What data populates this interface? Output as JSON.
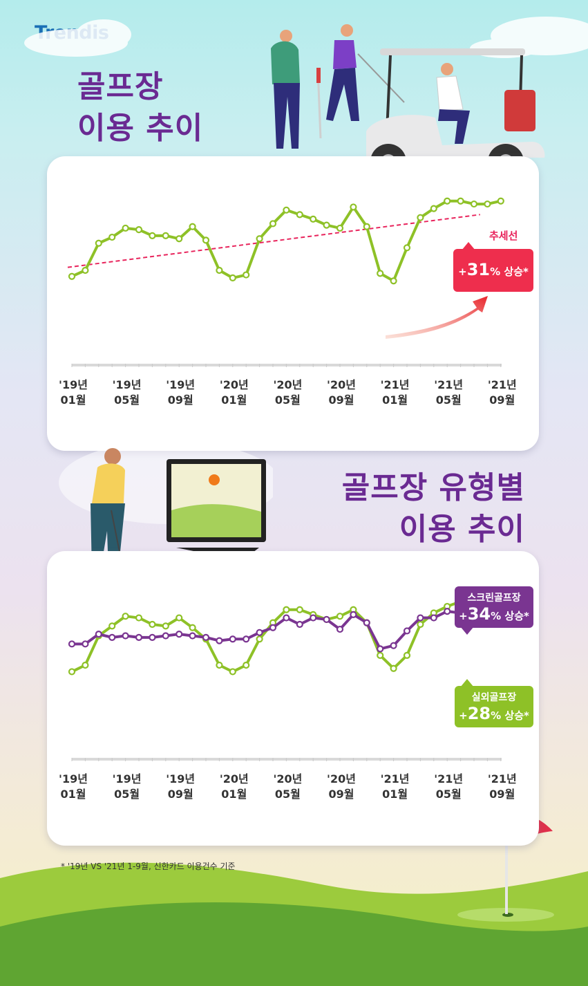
{
  "brand": {
    "logo": "Trendis"
  },
  "section1": {
    "title_line1": "골프장",
    "title_line2": "이용 추이",
    "trend_label": "추세선",
    "callout_prefix": "+",
    "callout_value": "31",
    "callout_suffix": "% 상승*"
  },
  "section2": {
    "title_line1": "골프장 유형별",
    "title_line2": "이용 추이",
    "callout_screen_name": "스크린골프장",
    "callout_screen_prefix": "+",
    "callout_screen_value": "34",
    "callout_screen_suffix": "% 상승*",
    "callout_outdoor_name": "실외골프장",
    "callout_outdoor_prefix": "+",
    "callout_outdoor_value": "28",
    "callout_outdoor_suffix": "% 상승*"
  },
  "footnote": "* '19년 VS '21년 1-9월, 신한카드 이용건수 기준",
  "colors": {
    "green": "#8ec127",
    "purple": "#7a3591",
    "trend": "#e8245c",
    "red_callout": "#ee2e4d",
    "title": "#6a2a92"
  },
  "chart_data": [
    {
      "type": "line",
      "x": [
        "'19.01",
        "'19.02",
        "'19.03",
        "'19.04",
        "'19.05",
        "'19.06",
        "'19.07",
        "'19.08",
        "'19.09",
        "'19.10",
        "'19.11",
        "'19.12",
        "'20.01",
        "'20.02",
        "'20.03",
        "'20.04",
        "'20.05",
        "'20.06",
        "'20.07",
        "'20.08",
        "'20.09",
        "'20.10",
        "'20.11",
        "'20.12",
        "'21.01",
        "'21.02",
        "'21.03",
        "'21.04",
        "'21.05",
        "'21.06",
        "'21.07",
        "'21.08",
        "'21.09"
      ],
      "tick_labels": [
        [
          "'19년",
          "01월"
        ],
        [
          "'19년",
          "05월"
        ],
        [
          "'19년",
          "09월"
        ],
        [
          "'20년",
          "01월"
        ],
        [
          "'20년",
          "05월"
        ],
        [
          "'20년",
          "09월"
        ],
        [
          "'21년",
          "01월"
        ],
        [
          "'21년",
          "05월"
        ],
        [
          "'21년",
          "09월"
        ]
      ],
      "series": [
        {
          "values": [
            46,
            50,
            68,
            72,
            78,
            77,
            73,
            73,
            71,
            79,
            70,
            50,
            45,
            47,
            71,
            81,
            90,
            87,
            84,
            80,
            78,
            92,
            79,
            48,
            43,
            65,
            85,
            91,
            96,
            96,
            94,
            94,
            96
          ]
        }
      ],
      "trendline": {
        "label": "추세선",
        "start": 52,
        "end": 87
      },
      "annotation": "+31% 상승*",
      "ylim": [
        0,
        100
      ]
    },
    {
      "type": "line",
      "x": [
        "'19.01",
        "'19.02",
        "'19.03",
        "'19.04",
        "'19.05",
        "'19.06",
        "'19.07",
        "'19.08",
        "'19.09",
        "'19.10",
        "'19.11",
        "'19.12",
        "'20.01",
        "'20.02",
        "'20.03",
        "'20.04",
        "'20.05",
        "'20.06",
        "'20.07",
        "'20.08",
        "'20.09",
        "'20.10",
        "'20.11",
        "'20.12",
        "'21.01",
        "'21.02",
        "'21.03",
        "'21.04",
        "'21.05",
        "'21.06",
        "'21.07",
        "'21.08",
        "'21.09"
      ],
      "tick_labels": [
        [
          "'19년",
          "01월"
        ],
        [
          "'19년",
          "05월"
        ],
        [
          "'19년",
          "09월"
        ],
        [
          "'20년",
          "01월"
        ],
        [
          "'20년",
          "05월"
        ],
        [
          "'20년",
          "09월"
        ],
        [
          "'21년",
          "01월"
        ],
        [
          "'21년",
          "05월"
        ],
        [
          "'21년",
          "09월"
        ]
      ],
      "series": [
        {
          "name": "실외골프장",
          "values": [
            46,
            50,
            68,
            74,
            80,
            79,
            75,
            74,
            79,
            73,
            66,
            50,
            46,
            50,
            66,
            76,
            84,
            84,
            81,
            78,
            80,
            84,
            76,
            56,
            48,
            56,
            75,
            82,
            86,
            89,
            86,
            84,
            86
          ]
        },
        {
          "name": "스크린골프장",
          "values": [
            63,
            63,
            69,
            67,
            68,
            67,
            67,
            68,
            69,
            68,
            67,
            65,
            66,
            66,
            70,
            73,
            79,
            75,
            79,
            78,
            72,
            81,
            76,
            60,
            62,
            71,
            79,
            79,
            83,
            82,
            84,
            89,
            88
          ]
        }
      ],
      "annotations": [
        "스크린골프장 +34% 상승*",
        "실외골프장 +28% 상승*"
      ],
      "ylim": [
        0,
        100
      ]
    }
  ]
}
